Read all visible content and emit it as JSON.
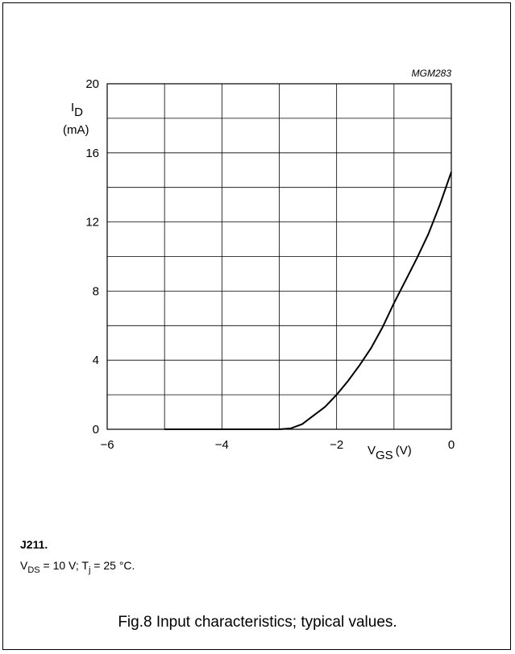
{
  "figure": {
    "code": "MGM283",
    "part": "J211.",
    "condition": {
      "vds_sym": "V",
      "vds_sub": "DS",
      "vds_rest": " = 10 V; T",
      "tj_sub": "j",
      "tj_rest": " = 25 °C."
    },
    "caption": "Fig.8  Input characteristics; typical values."
  },
  "chart_data": {
    "type": "line",
    "title": "",
    "ylabel": {
      "sym": "I",
      "sub": "D",
      "unit": "(mA)"
    },
    "xlabel": {
      "sym": "V",
      "sub": "GS",
      "unit": "(V)"
    },
    "xlim": [
      -6,
      0
    ],
    "ylim": [
      0,
      20
    ],
    "xticks": [
      -6,
      -5,
      -4,
      -3,
      -2,
      -1,
      0
    ],
    "yticks": [
      0,
      2,
      4,
      6,
      8,
      10,
      12,
      14,
      16,
      18,
      20
    ],
    "xtick_labels": [
      {
        "v": -6,
        "t": "−6"
      },
      {
        "v": -4,
        "t": "−4"
      },
      {
        "v": -2,
        "t": "−2"
      },
      {
        "v": 0,
        "t": "0"
      }
    ],
    "ytick_labels": [
      {
        "v": 0,
        "t": "0"
      },
      {
        "v": 4,
        "t": "4"
      },
      {
        "v": 8,
        "t": "8"
      },
      {
        "v": 12,
        "t": "12"
      },
      {
        "v": 16,
        "t": "16"
      },
      {
        "v": 20,
        "t": "20"
      }
    ],
    "grid": true,
    "series": [
      {
        "x": [
          -5,
          -3.0,
          -2.8,
          -2.6,
          -2.4,
          -2.2,
          -2.0,
          -1.8,
          -1.6,
          -1.4,
          -1.2,
          -1.0,
          -0.8,
          -0.6,
          -0.4,
          -0.2,
          0
        ],
        "y": [
          0,
          0,
          0.05,
          0.3,
          0.8,
          1.3,
          2.0,
          2.8,
          3.7,
          4.7,
          5.9,
          7.3,
          8.6,
          9.9,
          11.3,
          13.0,
          14.9
        ]
      }
    ]
  }
}
